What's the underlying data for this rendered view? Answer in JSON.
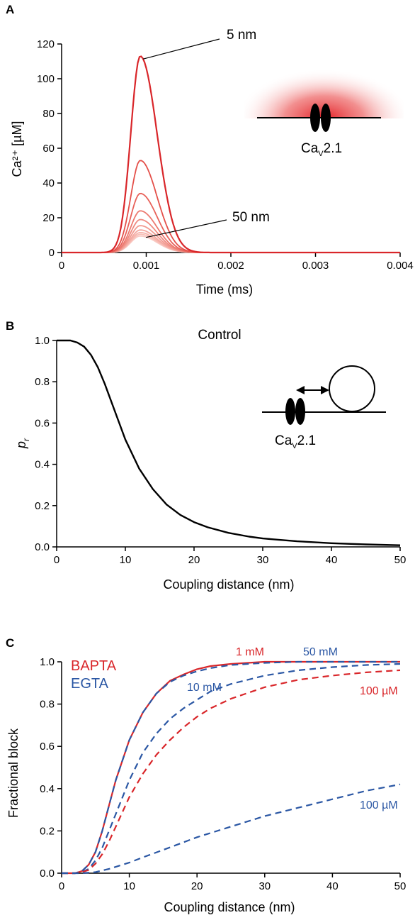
{
  "colors": {
    "axis": "#000000",
    "red": "#d9262a",
    "blue": "#2b57a4",
    "channel": "#000000"
  },
  "chart_data": [
    {
      "panel": "A",
      "type": "line",
      "xlabel": "Time (ms)",
      "ylabel": "Ca²⁺ [µM]",
      "xlim": [
        0,
        0.004
      ],
      "ylim": [
        0,
        120
      ],
      "xticks": [
        "0",
        "0.001",
        "0.002",
        "0.003",
        "0.004"
      ],
      "yticks": [
        "0",
        "20",
        "40",
        "60",
        "80",
        "100",
        "120"
      ],
      "peak_time": 0.00093,
      "series": [
        {
          "values_peak": 113,
          "color": "#d9262a"
        },
        {
          "values_peak": 53,
          "color": "#e4504a"
        },
        {
          "values_peak": 34,
          "color": "#e8625a"
        },
        {
          "values_peak": 24,
          "color": "#ec7a70"
        },
        {
          "values_peak": 19,
          "color": "#ef8a80"
        },
        {
          "values_peak": 15.5,
          "color": "#f29a90"
        },
        {
          "values_peak": 13,
          "color": "#f4a8a0"
        },
        {
          "values_peak": 11.5,
          "color": "#f6b4ac"
        },
        {
          "values_peak": 10.5,
          "color": "#f8c0b8"
        },
        {
          "values_peak": 9.5,
          "color": "#f9cac4"
        }
      ],
      "annotations": [
        {
          "text": "5 nm",
          "series_peak": 113
        },
        {
          "text": "50 nm",
          "series_peak": 9.5
        }
      ],
      "inset_label": "Ca",
      "inset_label_sub": "V",
      "inset_label_rest": "2.1"
    },
    {
      "panel": "B",
      "type": "line",
      "title": "Control",
      "xlabel": "Coupling distance (nm)",
      "ylabel": "p",
      "ylabel_sub": "r",
      "xlim": [
        0,
        50
      ],
      "ylim": [
        0,
        1.0
      ],
      "xticks": [
        "0",
        "10",
        "20",
        "30",
        "40",
        "50"
      ],
      "yticks": [
        "0.0",
        "0.2",
        "0.4",
        "0.6",
        "0.8",
        "1.0"
      ],
      "curve": {
        "x": [
          0,
          2,
          3,
          4,
          5,
          6,
          7,
          8,
          9,
          10,
          12,
          14,
          16,
          18,
          20,
          22,
          25,
          28,
          30,
          35,
          40,
          45,
          50
        ],
        "y": [
          1.0,
          1.0,
          0.99,
          0.97,
          0.93,
          0.87,
          0.79,
          0.7,
          0.61,
          0.52,
          0.38,
          0.28,
          0.205,
          0.155,
          0.12,
          0.095,
          0.068,
          0.05,
          0.041,
          0.027,
          0.018,
          0.012,
          0.008
        ]
      },
      "inset_label": "Ca",
      "inset_label_sub": "V",
      "inset_label_rest": "2.1"
    },
    {
      "panel": "C",
      "type": "line",
      "xlabel": "Coupling distance (nm)",
      "ylabel": "Fractional block",
      "xlim": [
        0,
        50
      ],
      "ylim": [
        0,
        1.0
      ],
      "xticks": [
        "0",
        "10",
        "20",
        "30",
        "40",
        "50"
      ],
      "yticks": [
        "0.0",
        "0.2",
        "0.4",
        "0.6",
        "0.8",
        "1.0"
      ],
      "legend": [
        {
          "name": "BAPTA",
          "color": "#d9262a"
        },
        {
          "name": "EGTA",
          "color": "#2b57a4"
        }
      ],
      "series": [
        {
          "name": "1 mM",
          "buffer": "BAPTA",
          "color": "#d9262a",
          "style": "solid",
          "x": [
            0,
            2,
            3,
            4,
            5,
            6,
            7,
            8,
            10,
            12,
            14,
            16,
            18,
            20,
            22,
            25,
            30,
            35,
            40,
            45,
            50
          ],
          "y": [
            0,
            0,
            0.01,
            0.04,
            0.1,
            0.2,
            0.32,
            0.44,
            0.63,
            0.76,
            0.85,
            0.91,
            0.94,
            0.965,
            0.98,
            0.99,
            1.0,
            1.0,
            1.0,
            1.0,
            1.0
          ]
        },
        {
          "name": "50 mM",
          "buffer": "EGTA",
          "color": "#2b57a4",
          "style": "dashed",
          "x": [
            0,
            2,
            3,
            4,
            5,
            6,
            7,
            8,
            10,
            12,
            14,
            16,
            18,
            20,
            22,
            25,
            30,
            35,
            40,
            45,
            50
          ],
          "y": [
            0,
            0,
            0.01,
            0.04,
            0.1,
            0.2,
            0.32,
            0.44,
            0.63,
            0.76,
            0.85,
            0.905,
            0.935,
            0.955,
            0.97,
            0.985,
            0.995,
            1.0,
            1.0,
            1.0,
            1.0
          ]
        },
        {
          "name": "10 mM",
          "buffer": "EGTA",
          "color": "#2b57a4",
          "style": "dashed",
          "x": [
            0,
            2,
            3,
            4,
            5,
            6,
            7,
            8,
            10,
            12,
            14,
            16,
            18,
            20,
            22,
            25,
            30,
            35,
            40,
            45,
            50
          ],
          "y": [
            0,
            0,
            0.005,
            0.02,
            0.06,
            0.12,
            0.2,
            0.28,
            0.44,
            0.57,
            0.66,
            0.73,
            0.78,
            0.82,
            0.86,
            0.895,
            0.935,
            0.96,
            0.975,
            0.985,
            0.99
          ]
        },
        {
          "name": "100 µM",
          "buffer": "BAPTA",
          "color": "#d9262a",
          "style": "dashed",
          "x": [
            0,
            2,
            3,
            4,
            5,
            6,
            7,
            8,
            10,
            12,
            14,
            16,
            18,
            20,
            22,
            25,
            30,
            35,
            40,
            45,
            50
          ],
          "y": [
            0,
            0,
            0.005,
            0.015,
            0.045,
            0.09,
            0.15,
            0.22,
            0.36,
            0.47,
            0.56,
            0.63,
            0.69,
            0.74,
            0.78,
            0.825,
            0.88,
            0.915,
            0.935,
            0.95,
            0.96
          ]
        },
        {
          "name": "100 µM",
          "buffer": "EGTA",
          "color": "#2b57a4",
          "style": "dashed",
          "x": [
            0,
            3,
            5,
            7,
            10,
            12,
            15,
            20,
            25,
            30,
            35,
            40,
            45,
            50
          ],
          "y": [
            0,
            0,
            0.005,
            0.02,
            0.05,
            0.075,
            0.11,
            0.17,
            0.22,
            0.27,
            0.31,
            0.35,
            0.39,
            0.42
          ]
        }
      ],
      "labels": [
        {
          "text": "1 mM",
          "color": "#d9262a"
        },
        {
          "text": "50 mM",
          "color": "#2b57a4"
        },
        {
          "text": "10 mM",
          "color": "#2b57a4"
        },
        {
          "text": "100 µM",
          "color": "#d9262a"
        },
        {
          "text": "100 µM",
          "color": "#2b57a4"
        }
      ]
    }
  ]
}
